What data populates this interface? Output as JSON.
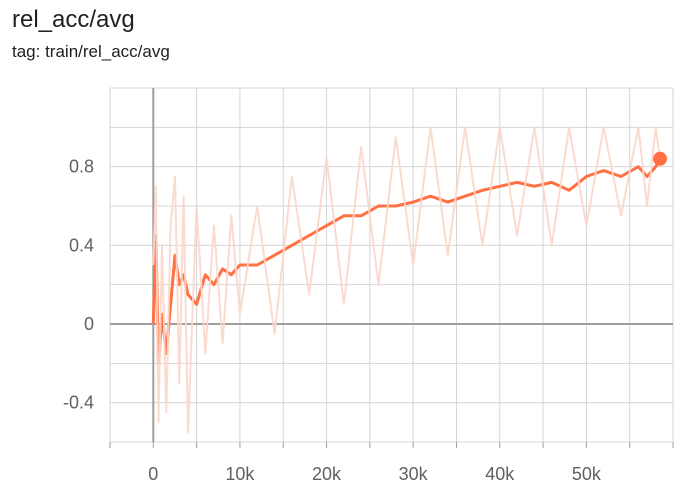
{
  "header": {
    "title": "rel_acc/avg",
    "subtitle": "tag: train/rel_acc/avg"
  },
  "colors": {
    "smoothed": "#ff7043",
    "raw": "#fbd7cb",
    "grid": "#d6d6d6",
    "axis": "#9e9e9e",
    "text": "#616161"
  },
  "chart_data": {
    "type": "line",
    "title": "rel_acc/avg",
    "xlabel": "",
    "ylabel": "",
    "xlim": [
      -5000,
      60000
    ],
    "ylim": [
      -0.6,
      1.2
    ],
    "x_ticks": [
      0,
      10000,
      20000,
      30000,
      40000,
      50000
    ],
    "x_tick_labels": [
      "0",
      "10k",
      "20k",
      "30k",
      "40k",
      "50k"
    ],
    "y_ticks": [
      -0.4,
      0,
      0.4,
      0.8
    ],
    "y_tick_labels": [
      "-0.4",
      "0",
      "0.4",
      "0.8"
    ],
    "grid": true,
    "series": [
      {
        "style": "smoothed",
        "x": [
          0,
          300,
          600,
          1000,
          1500,
          2000,
          2500,
          3000,
          3500,
          4000,
          5000,
          6000,
          7000,
          8000,
          9000,
          10000,
          12000,
          14000,
          16000,
          18000,
          20000,
          22000,
          24000,
          26000,
          28000,
          30000,
          32000,
          34000,
          36000,
          38000,
          40000,
          42000,
          44000,
          46000,
          48000,
          50000,
          52000,
          54000,
          56000,
          57000,
          58000,
          58500
        ],
        "y": [
          0.0,
          0.45,
          -0.2,
          0.05,
          -0.15,
          0.1,
          0.35,
          0.2,
          0.25,
          0.15,
          0.1,
          0.25,
          0.2,
          0.28,
          0.25,
          0.3,
          0.3,
          0.35,
          0.4,
          0.45,
          0.5,
          0.55,
          0.55,
          0.6,
          0.6,
          0.62,
          0.65,
          0.62,
          0.65,
          0.68,
          0.7,
          0.72,
          0.7,
          0.72,
          0.68,
          0.75,
          0.78,
          0.75,
          0.8,
          0.75,
          0.8,
          0.84
        ]
      },
      {
        "style": "raw",
        "x": [
          0,
          300,
          600,
          1000,
          1500,
          2000,
          2500,
          3000,
          3500,
          4000,
          5000,
          6000,
          7000,
          8000,
          9000,
          10000,
          12000,
          14000,
          16000,
          18000,
          20000,
          22000,
          24000,
          26000,
          28000,
          30000,
          32000,
          34000,
          36000,
          38000,
          40000,
          42000,
          44000,
          46000,
          48000,
          50000,
          52000,
          54000,
          56000,
          57000,
          58000,
          58500
        ],
        "y": [
          0.3,
          0.7,
          -0.5,
          0.4,
          -0.45,
          0.5,
          0.75,
          -0.3,
          0.65,
          -0.55,
          0.6,
          -0.15,
          0.5,
          -0.1,
          0.55,
          0.05,
          0.6,
          -0.05,
          0.75,
          0.15,
          0.85,
          0.1,
          0.9,
          0.2,
          0.95,
          0.3,
          1.0,
          0.35,
          1.0,
          0.4,
          1.0,
          0.45,
          1.0,
          0.4,
          1.0,
          0.5,
          1.0,
          0.55,
          1.0,
          0.6,
          1.0,
          0.84
        ]
      }
    ]
  }
}
